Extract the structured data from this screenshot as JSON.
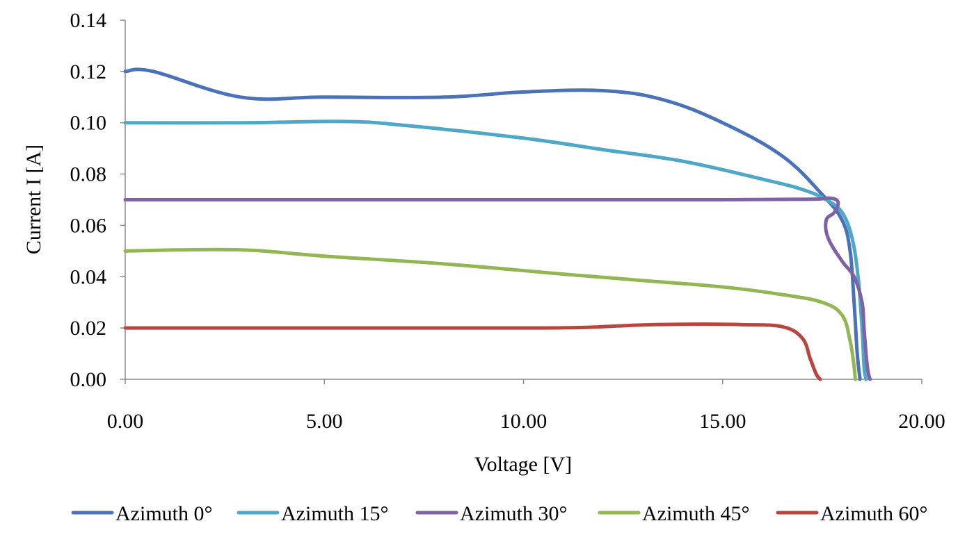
{
  "chart_data": {
    "type": "line",
    "title": "",
    "xlabel": "Voltage [V]",
    "ylabel": "Current I [A]",
    "xlim": [
      0,
      20
    ],
    "ylim": [
      0,
      0.14
    ],
    "grid": false,
    "legend_position": "bottom",
    "x_ticks": [
      "0.00",
      "5.00",
      "10.00",
      "15.00",
      "20.00"
    ],
    "y_ticks": [
      "0.00",
      "0.02",
      "0.04",
      "0.06",
      "0.08",
      "0.10",
      "0.12",
      "0.14"
    ],
    "series": [
      {
        "name": "Azimuth 0°",
        "color": "#4a72b8",
        "points": [
          [
            0,
            0.12
          ],
          [
            0.7,
            0.12
          ],
          [
            2.9,
            0.11
          ],
          [
            5,
            0.11
          ],
          [
            8,
            0.11
          ],
          [
            10,
            0.112
          ],
          [
            12,
            0.1125
          ],
          [
            13.5,
            0.109
          ],
          [
            15,
            0.1
          ],
          [
            16.5,
            0.087
          ],
          [
            17.5,
            0.072
          ],
          [
            18,
            0.062
          ],
          [
            18.2,
            0.05
          ],
          [
            18.3,
            0.03
          ],
          [
            18.38,
            0.01
          ],
          [
            18.45,
            0
          ]
        ]
      },
      {
        "name": "Azimuth 15°",
        "color": "#4fa7c7",
        "points": [
          [
            0,
            0.1
          ],
          [
            3,
            0.1
          ],
          [
            5.5,
            0.1005
          ],
          [
            7,
            0.099
          ],
          [
            10,
            0.094
          ],
          [
            12,
            0.0895
          ],
          [
            14,
            0.085
          ],
          [
            16,
            0.078
          ],
          [
            17,
            0.074
          ],
          [
            17.6,
            0.07
          ],
          [
            18,
            0.065
          ],
          [
            18.25,
            0.055
          ],
          [
            18.4,
            0.04
          ],
          [
            18.5,
            0.02
          ],
          [
            18.55,
            0.005
          ],
          [
            18.6,
            0
          ]
        ]
      },
      {
        "name": "Azimuth 30°",
        "color": "#7e62a4",
        "points": [
          [
            0,
            0.07
          ],
          [
            5,
            0.07
          ],
          [
            10,
            0.07
          ],
          [
            15,
            0.07
          ],
          [
            17.2,
            0.0702
          ],
          [
            17.7,
            0.0706
          ],
          [
            17.9,
            0.069
          ],
          [
            17.8,
            0.065
          ],
          [
            17.6,
            0.062
          ],
          [
            17.65,
            0.055
          ],
          [
            18,
            0.046
          ],
          [
            18.3,
            0.04
          ],
          [
            18.5,
            0.03
          ],
          [
            18.55,
            0.02
          ],
          [
            18.6,
            0.01
          ],
          [
            18.65,
            0.003
          ],
          [
            18.7,
            0
          ]
        ]
      },
      {
        "name": "Azimuth 45°",
        "color": "#93b655",
        "points": [
          [
            0,
            0.05
          ],
          [
            2.8,
            0.0505
          ],
          [
            5,
            0.048
          ],
          [
            8,
            0.045
          ],
          [
            11,
            0.041
          ],
          [
            13,
            0.0385
          ],
          [
            15,
            0.036
          ],
          [
            16.5,
            0.033
          ],
          [
            17.5,
            0.03
          ],
          [
            18,
            0.025
          ],
          [
            18.2,
            0.015
          ],
          [
            18.3,
            0.005
          ],
          [
            18.33,
            0
          ]
        ]
      },
      {
        "name": "Azimuth 60°",
        "color": "#b9453f",
        "points": [
          [
            0,
            0.02
          ],
          [
            5,
            0.02
          ],
          [
            10,
            0.02
          ],
          [
            11.5,
            0.0202
          ],
          [
            13,
            0.0212
          ],
          [
            14.5,
            0.0215
          ],
          [
            15.5,
            0.0213
          ],
          [
            16.5,
            0.0205
          ],
          [
            17,
            0.016
          ],
          [
            17.2,
            0.008
          ],
          [
            17.35,
            0.002
          ],
          [
            17.45,
            0
          ]
        ]
      }
    ]
  }
}
